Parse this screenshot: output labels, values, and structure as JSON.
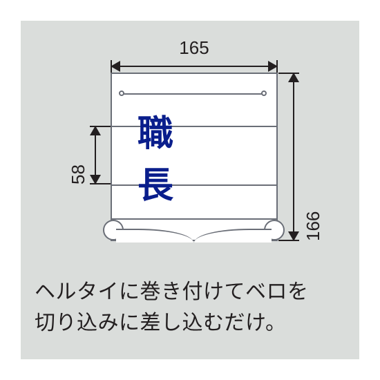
{
  "diagram": {
    "type": "dimensioned-illustration",
    "product_fill": "#ffffff",
    "product_outline": "#6a6e77",
    "band_text": "職　長",
    "band_text_color": "#0a1e8c",
    "band_text_fontsize": 52,
    "dimensions": {
      "width": {
        "value": "165",
        "fontsize": 26
      },
      "height": {
        "value": "166",
        "fontsize": 26
      },
      "band_height": {
        "value": "58",
        "fontsize": 26
      }
    },
    "dim_line_color": "#231f20",
    "panel_bg": "#dadddb"
  },
  "caption": {
    "line1": "ヘルタイに巻き付けてベロを",
    "line2": "切り込みに差し込むだけ。",
    "color": "#231f20",
    "fontsize": 30
  }
}
